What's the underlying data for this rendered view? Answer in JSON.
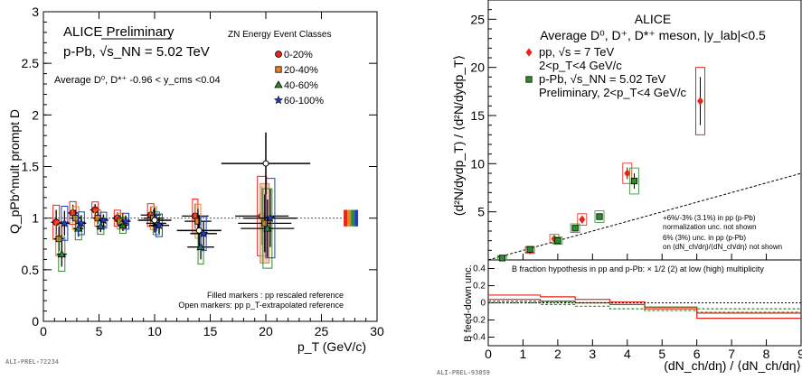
{
  "chart_data": [
    {
      "type": "scatter",
      "title": "ALICE Preliminary",
      "subtitle": "p-Pb, √s_NN = 5.02 TeV",
      "selection": "Average D⁰, D*⁺ -0.96 < y_cms <0.04",
      "legend_title": "ZN Energy Event Classes",
      "legend_position": "top-right",
      "xlabel": "p_T (GeV/c)",
      "ylabel": "Q_pPb^mult prompt D",
      "xlim": [
        0,
        30
      ],
      "ylim": [
        0,
        3
      ],
      "xticks": [
        "0",
        "5",
        "10",
        "15",
        "20",
        "25",
        "30"
      ],
      "yticks": [
        "0",
        "0.5",
        "1",
        "1.5",
        "2",
        "2.5",
        "3"
      ],
      "note1": "Filled markers : pp rescaled reference",
      "note2": "Open markers: pp p_T-extrapolated reference",
      "watermark": "ALI-PREL-72234",
      "series": [
        {
          "name": "0-20%",
          "marker": "circle",
          "color": "#e8231a",
          "x": [
            1.5,
            3,
            5,
            7,
            10,
            14,
            20
          ],
          "y": [
            0.96,
            1.05,
            1.08,
            1.0,
            1.03,
            1.02,
            1.02
          ],
          "xerr": [
            0.5,
            0.5,
            0.5,
            0.5,
            1.5,
            2,
            4
          ],
          "yerr": [
            0.15,
            0.1,
            0.07,
            0.07,
            0.1,
            0.15,
            0.35
          ]
        },
        {
          "name": "20-40%",
          "marker": "square",
          "color": "#f07d1e",
          "x": [
            1.5,
            3,
            5,
            7,
            10,
            14,
            20
          ],
          "y": [
            0.8,
            1.0,
            1.0,
            0.97,
            1.0,
            0.97,
            0.95
          ],
          "xerr": [
            0.5,
            0.5,
            0.5,
            0.5,
            1.5,
            2,
            4
          ],
          "yerr": [
            0.15,
            0.1,
            0.07,
            0.07,
            0.1,
            0.15,
            0.35
          ]
        },
        {
          "name": "40-60%",
          "marker": "triangle",
          "color": "#2e8b2e",
          "x": [
            1.5,
            3,
            5,
            7,
            10,
            14,
            20
          ],
          "y": [
            0.65,
            0.9,
            0.92,
            0.93,
            0.95,
            0.72,
            0.9
          ],
          "xerr": [
            0.5,
            0.5,
            0.5,
            0.5,
            1.5,
            2,
            4
          ],
          "yerr": [
            0.15,
            0.1,
            0.07,
            0.07,
            0.1,
            0.15,
            0.35
          ]
        },
        {
          "name": "60-100%",
          "marker": "star",
          "color": "#1f3fbf",
          "x": [
            1.5,
            3,
            5,
            7,
            10,
            14,
            20
          ],
          "y": [
            0.95,
            0.95,
            0.98,
            0.97,
            0.93,
            0.85,
            1.0
          ],
          "xerr": [
            0.5,
            0.5,
            0.5,
            0.5,
            1.5,
            2,
            4
          ],
          "yerr": [
            0.15,
            0.1,
            0.07,
            0.07,
            0.1,
            0.15,
            0.35
          ]
        }
      ],
      "open_markers": {
        "x": [
          10,
          14,
          20
        ],
        "y": [
          0.98,
          0.88,
          1.53
        ],
        "xerr": [
          1.5,
          2,
          4
        ],
        "yerr": [
          0.12,
          0.15,
          0.3
        ]
      },
      "reference_line": 1.0,
      "norm_band_colors": [
        "#e8231a",
        "#f07d1e",
        "#2e8b2e",
        "#1f3fbf"
      ]
    },
    {
      "type": "scatter",
      "title": "ALICE",
      "subtitle": "Average D⁰, D⁺, D*⁺ meson, |y_lab|<0.5",
      "xlabel": "(dN_ch/dη) / ⟨dN_ch/dη⟩",
      "ylabel": "(d²N/dydp_T) / ⟨d²N/dydp_T⟩",
      "ylabel_bottom": "B feed-down unc.",
      "xlim": [
        0,
        9
      ],
      "ylim": [
        0,
        27
      ],
      "xticks": [
        "0",
        "1",
        "2",
        "3",
        "4",
        "5",
        "6",
        "7",
        "8",
        "9"
      ],
      "yticks": [
        "5",
        "10",
        "15",
        "20",
        "25"
      ],
      "bottom_ylim": [
        -0.5,
        0.5
      ],
      "bottom_yticks": [
        "0.4",
        "0.2",
        "0",
        "-0.2",
        "-0.4"
      ],
      "legend_position": "top-left",
      "note1": "+6%/-3% (3.1%) in pp (p-Pb)",
      "note2": "normalization unc. not shown",
      "note3": "6% (3%) unc. in pp (p-Pb)",
      "note4": "on (dN_ch/dη)/⟨dN_ch/dη⟩ not shown",
      "bottom_text": "B fraction hypothesis in pp and p-Pb: × 1/2 (2) at low (high) multiplicity",
      "watermark": "ALI-PREL-93059",
      "series": [
        {
          "name": "pp, √s = 7 TeV",
          "range": "2<p_T<4 GeV/c",
          "color": "#e8231a",
          "marker": "diamond",
          "x": [
            1.2,
            1.9,
            2.7,
            4.0,
            6.1
          ],
          "y": [
            1.0,
            2.2,
            4.2,
            9.0,
            16.5
          ],
          "yerr": [
            0.1,
            0.2,
            0.3,
            0.6,
            2.5
          ]
        },
        {
          "name": "p-Pb, √s_NN = 5.02 TeV",
          "range": "Preliminary, 2<p_T<4 GeV/c",
          "color": "#2e8b2e",
          "marker": "square",
          "x": [
            0.4,
            1.2,
            2.0,
            2.5,
            3.2,
            4.2
          ],
          "y": [
            0.2,
            1.1,
            2.0,
            3.3,
            4.5,
            8.2
          ],
          "yerr": [
            0.05,
            0.1,
            0.15,
            0.2,
            0.3,
            0.8
          ]
        }
      ],
      "diagonal": {
        "x": [
          0,
          9
        ],
        "y": [
          0,
          9
        ]
      },
      "bfd_steps": {
        "x": [
          0,
          1.5,
          2.5,
          3.5,
          4.5,
          6,
          9
        ],
        "pp_upper": [
          0.09,
          0.07,
          0.04,
          0.01,
          -0.05,
          -0.18,
          -0.22
        ],
        "pp_lower": [
          0.04,
          0.02,
          0.0,
          -0.02,
          -0.07,
          -0.12,
          -0.14
        ],
        "pPb_upper": [
          0.02,
          0.01,
          0.0,
          -0.02,
          -0.05,
          -0.07,
          -0.08
        ],
        "pPb_mid": [
          0.0,
          -0.02,
          -0.04,
          -0.07,
          -0.09,
          -0.11,
          -0.12
        ]
      }
    }
  ]
}
